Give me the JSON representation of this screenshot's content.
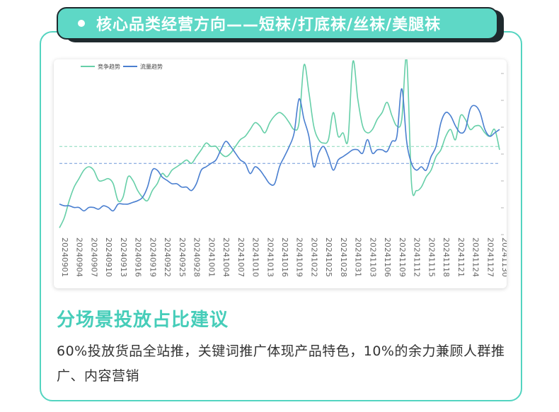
{
  "header": {
    "title": "核心品类经营方向——短袜/打底袜/丝袜/美腿袜"
  },
  "colors": {
    "accent": "#5ed8c6",
    "series_competition": "#66cfa8",
    "series_traffic": "#4a7fd0"
  },
  "chart_data": {
    "type": "line",
    "title": "",
    "xlabel": "",
    "ylabel": "",
    "ylim": [
      0,
      100
    ],
    "grid": false,
    "legend": "top-left",
    "x": [
      "20240901",
      "20240902",
      "20240903",
      "20240904",
      "20240905",
      "20240906",
      "20240907",
      "20240908",
      "20240909",
      "20240910",
      "20240911",
      "20240912",
      "20240913",
      "20240914",
      "20240915",
      "20240916",
      "20240917",
      "20240918",
      "20240919",
      "20240920",
      "20240921",
      "20240922",
      "20240923",
      "20240924",
      "20240925",
      "20240926",
      "20240927",
      "20240928",
      "20240929",
      "20240930",
      "20241001",
      "20241002",
      "20241003",
      "20241004",
      "20241005",
      "20241006",
      "20241007",
      "20241008",
      "20241009",
      "20241010",
      "20241011",
      "20241012",
      "20241013",
      "20241014",
      "20241015",
      "20241016",
      "20241017",
      "20241018",
      "20241019",
      "20241020",
      "20241021",
      "20241022",
      "20241023",
      "20241024",
      "20241025",
      "20241026",
      "20241027",
      "20241028",
      "20241029",
      "20241030",
      "20241031",
      "20241101",
      "20241102",
      "20241103",
      "20241104",
      "20241105",
      "20241106",
      "20241107",
      "20241108",
      "20241109",
      "20241110",
      "20241111",
      "20241112",
      "20241113",
      "20241114",
      "20241115",
      "20241116",
      "20241117",
      "20241118",
      "20241119",
      "20241120",
      "20241121",
      "20241122",
      "20241123",
      "20241124",
      "20241125",
      "20241126",
      "20241127",
      "20241128",
      "20241129",
      "20241130"
    ],
    "x_tick_labels": [
      "20240901",
      "20240904",
      "20240907",
      "20240910",
      "20240913",
      "20240916",
      "20240919",
      "20240922",
      "20240925",
      "20240928",
      "20241001",
      "20241004",
      "20241007",
      "20241010",
      "20241013",
      "20241016",
      "20241019",
      "20241022",
      "20241025",
      "20241028",
      "20241031",
      "20241103",
      "20241106",
      "20241109",
      "20241112",
      "20241115",
      "20241118",
      "20241121",
      "20241124",
      "20241127",
      "20241130"
    ],
    "series": [
      {
        "name": "竞争趋势",
        "values": [
          4,
          10,
          20,
          28,
          33,
          38,
          40,
          38,
          32,
          32,
          33,
          30,
          20,
          22,
          34,
          32,
          26,
          22,
          20,
          26,
          30,
          36,
          34,
          38,
          40,
          42,
          44,
          42,
          46,
          50,
          54,
          52,
          52,
          48,
          46,
          48,
          52,
          56,
          58,
          62,
          66,
          64,
          60,
          66,
          70,
          72,
          70,
          66,
          62,
          66,
          100,
          84,
          64,
          56,
          54,
          56,
          72,
          58,
          60,
          56,
          102,
          80,
          64,
          60,
          62,
          68,
          72,
          78,
          70,
          64,
          68,
          104,
          30,
          26,
          28,
          34,
          38,
          46,
          50,
          58,
          62,
          56,
          70,
          68,
          62,
          64,
          64,
          60,
          58,
          62,
          50
        ],
        "color": "#66cfa8"
      },
      {
        "name": "流量趋势",
        "values": [
          18,
          17,
          17,
          16,
          16,
          14,
          16,
          16,
          15,
          17,
          16,
          14,
          18,
          18,
          18,
          19,
          20,
          22,
          28,
          38,
          38,
          34,
          32,
          30,
          30,
          28,
          28,
          26,
          30,
          38,
          40,
          42,
          44,
          50,
          55,
          52,
          48,
          44,
          42,
          36,
          40,
          38,
          34,
          30,
          30,
          40,
          46,
          52,
          60,
          80,
          68,
          58,
          40,
          48,
          52,
          46,
          38,
          44,
          46,
          48,
          50,
          50,
          48,
          56,
          48,
          50,
          50,
          49,
          55,
          58,
          86,
          55,
          42,
          38,
          40,
          38,
          46,
          52,
          66,
          72,
          70,
          64,
          60,
          62,
          74,
          76,
          72,
          62,
          58,
          60,
          62
        ]
      }
    ],
    "reference_lines": [
      52,
      42
    ]
  },
  "section": {
    "heading": "分场景投放占比建议",
    "description": "60%投放货品全站推，关键词推广体现产品特色，10%的余力兼顾人群推广、内容营销"
  }
}
